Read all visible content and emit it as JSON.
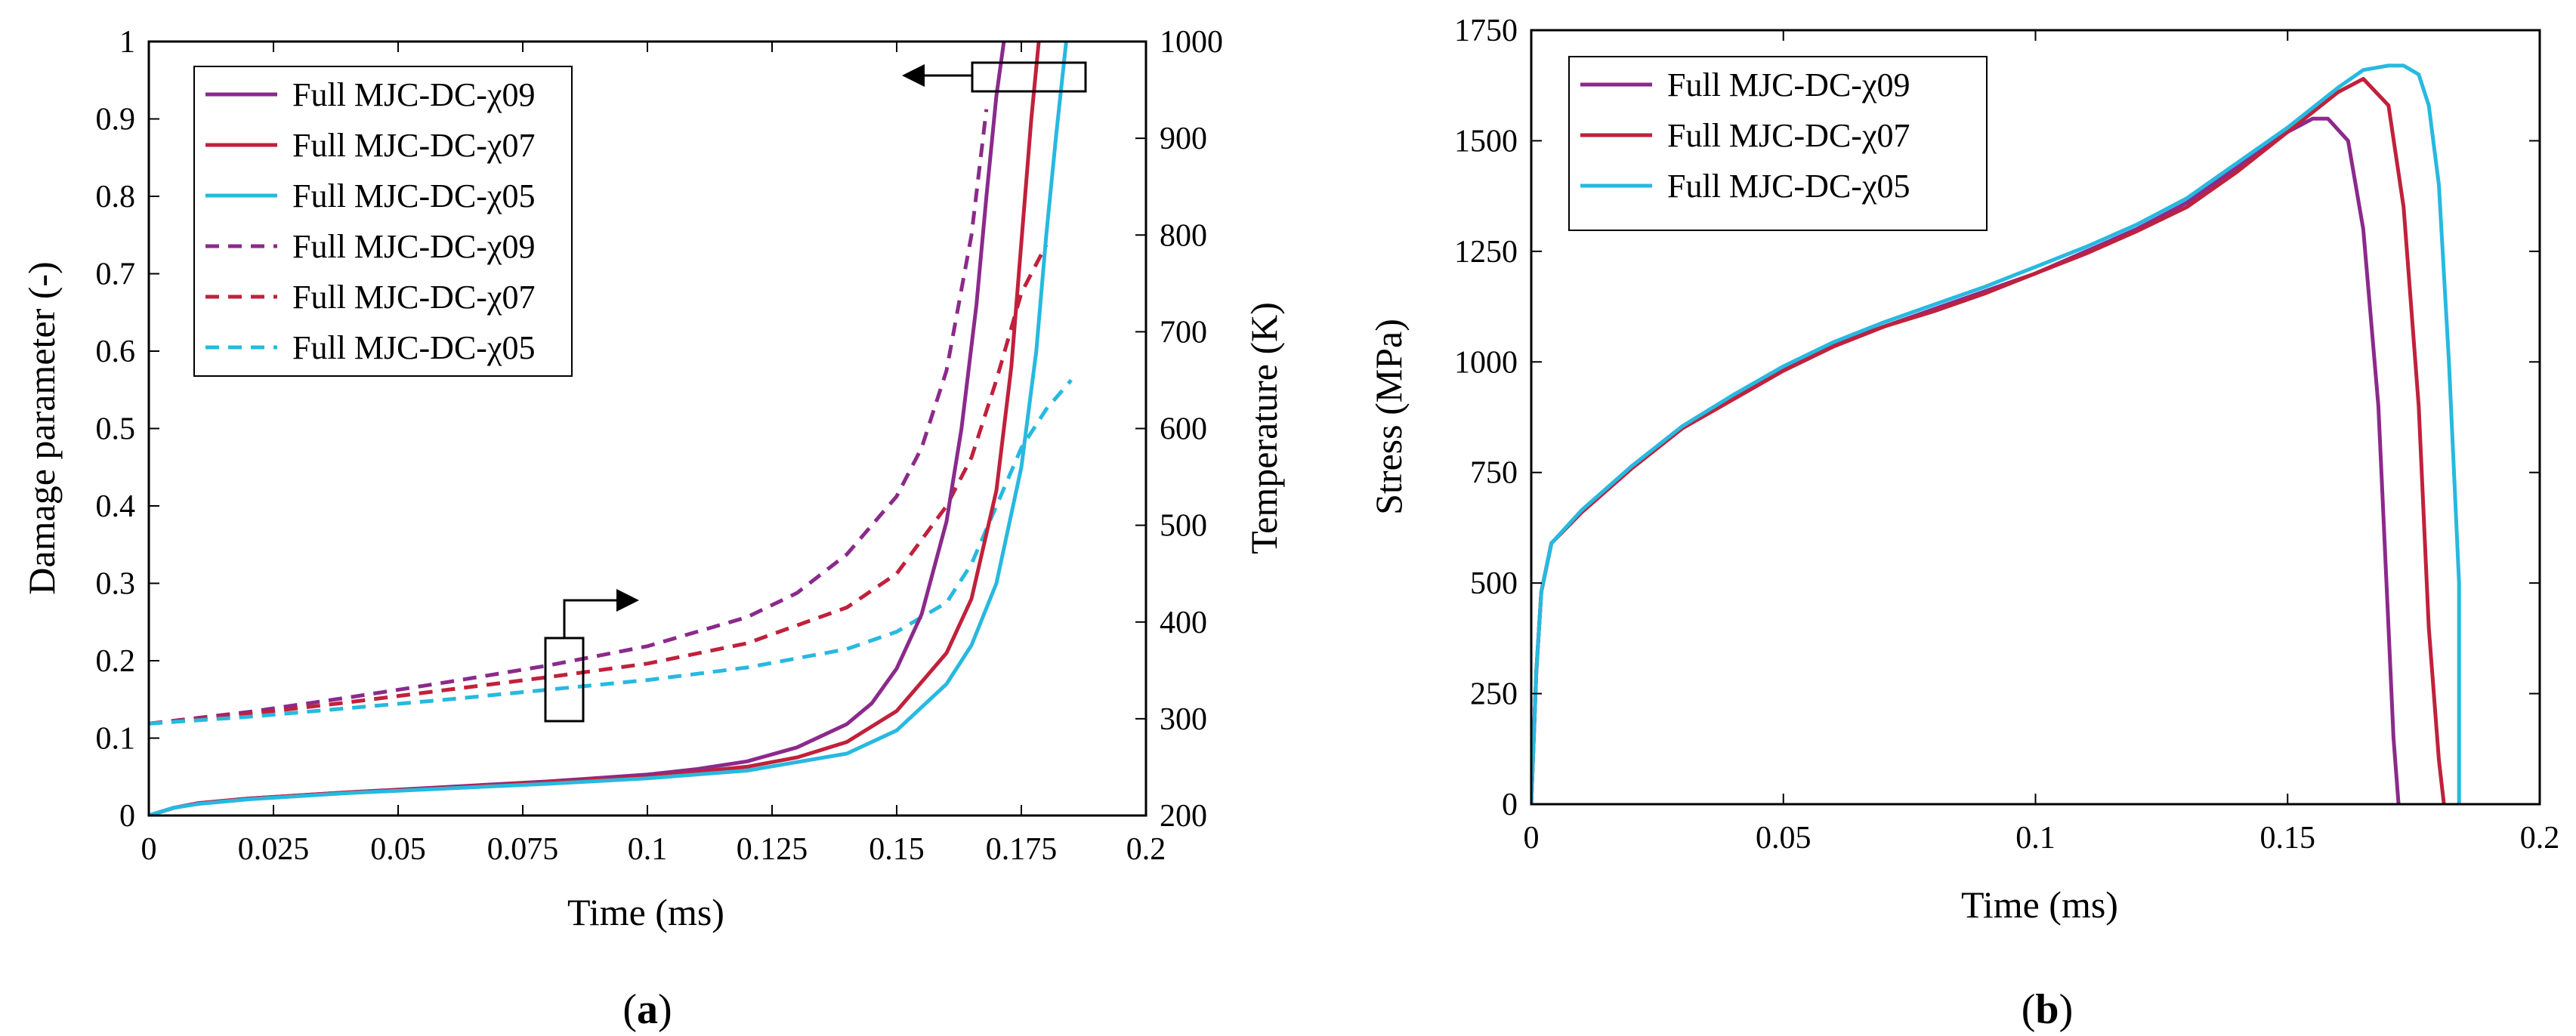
{
  "chart_data": [
    {
      "id": "a",
      "type": "line",
      "panel_label": "(a)",
      "panel_label_letter": "a",
      "xlabel": "Time (ms)",
      "ylabel": "Damage parameter (-)",
      "y2label": "Temperature (K)",
      "xlim": [
        0,
        0.2
      ],
      "ylim": [
        0,
        1
      ],
      "y2lim": [
        200,
        1000
      ],
      "xticks": [
        "0",
        "0.025",
        "0.05",
        "0.075",
        "0.1",
        "0.125",
        "0.15",
        "0.175",
        "0.2"
      ],
      "yticks": [
        "0",
        "0.1",
        "0.2",
        "0.3",
        "0.4",
        "0.5",
        "0.6",
        "0.7",
        "0.8",
        "0.9",
        "1"
      ],
      "y2ticks": [
        "200",
        "300",
        "400",
        "500",
        "600",
        "700",
        "800",
        "900",
        "1000"
      ],
      "legend_position": "top-left",
      "series": [
        {
          "name": "Full MJC-DC-χ09",
          "axis": "left",
          "style": "solid",
          "color": "#8B2A8B",
          "x": [
            0,
            0.005,
            0.01,
            0.02,
            0.04,
            0.06,
            0.08,
            0.1,
            0.11,
            0.12,
            0.13,
            0.14,
            0.145,
            0.15,
            0.155,
            0.16,
            0.163,
            0.166,
            0.168,
            0.17,
            0.1715
          ],
          "y": [
            0,
            0.01,
            0.016,
            0.022,
            0.03,
            0.037,
            0.044,
            0.053,
            0.06,
            0.07,
            0.088,
            0.118,
            0.145,
            0.19,
            0.26,
            0.38,
            0.5,
            0.66,
            0.8,
            0.93,
            1.0
          ]
        },
        {
          "name": "Full MJC-DC-χ07",
          "axis": "left",
          "style": "solid",
          "color": "#C0213B",
          "x": [
            0,
            0.005,
            0.01,
            0.02,
            0.04,
            0.06,
            0.08,
            0.1,
            0.12,
            0.13,
            0.14,
            0.15,
            0.16,
            0.165,
            0.17,
            0.173,
            0.175,
            0.177,
            0.1785
          ],
          "y": [
            0,
            0.01,
            0.016,
            0.022,
            0.03,
            0.036,
            0.043,
            0.05,
            0.063,
            0.075,
            0.095,
            0.135,
            0.21,
            0.28,
            0.42,
            0.58,
            0.74,
            0.9,
            1.0
          ]
        },
        {
          "name": "Full MJC-DC-χ05",
          "axis": "left",
          "style": "solid",
          "color": "#27B9E0",
          "x": [
            0,
            0.005,
            0.01,
            0.02,
            0.04,
            0.06,
            0.08,
            0.1,
            0.12,
            0.14,
            0.15,
            0.16,
            0.165,
            0.17,
            0.175,
            0.178,
            0.18,
            0.182,
            0.184
          ],
          "y": [
            0,
            0.01,
            0.015,
            0.021,
            0.029,
            0.035,
            0.041,
            0.048,
            0.058,
            0.08,
            0.11,
            0.17,
            0.22,
            0.3,
            0.45,
            0.6,
            0.75,
            0.88,
            1.0
          ]
        },
        {
          "name": "Full MJC-DC-χ09",
          "axis": "right",
          "style": "dashed",
          "color": "#8B2A8B",
          "x": [
            0,
            0.02,
            0.04,
            0.06,
            0.08,
            0.1,
            0.12,
            0.13,
            0.14,
            0.15,
            0.155,
            0.16,
            0.165,
            0.168
          ],
          "y": [
            295,
            307,
            322,
            338,
            355,
            375,
            405,
            430,
            470,
            530,
            580,
            660,
            800,
            930
          ]
        },
        {
          "name": "Full MJC-DC-χ07",
          "axis": "right",
          "style": "dashed",
          "color": "#C0213B",
          "x": [
            0,
            0.02,
            0.04,
            0.06,
            0.08,
            0.1,
            0.12,
            0.14,
            0.15,
            0.16,
            0.165,
            0.17,
            0.175,
            0.18
          ],
          "y": [
            295,
            305,
            317,
            330,
            343,
            357,
            378,
            415,
            450,
            520,
            570,
            650,
            740,
            790
          ]
        },
        {
          "name": "Full MJC-DC-χ05",
          "axis": "right",
          "style": "dashed",
          "color": "#27B9E0",
          "x": [
            0,
            0.02,
            0.04,
            0.06,
            0.08,
            0.1,
            0.12,
            0.14,
            0.15,
            0.16,
            0.165,
            0.17,
            0.175,
            0.18,
            0.185
          ],
          "y": [
            295,
            302,
            311,
            320,
            330,
            340,
            353,
            372,
            390,
            420,
            460,
            520,
            580,
            620,
            650
          ]
        }
      ]
    },
    {
      "id": "b",
      "type": "line",
      "panel_label": "(b)",
      "panel_label_letter": "b",
      "xlabel": "Time (ms)",
      "ylabel": "Stress (MPa)",
      "xlim": [
        0,
        0.2
      ],
      "ylim": [
        0,
        1750
      ],
      "xticks": [
        "0",
        "0.05",
        "0.1",
        "0.15",
        "0.2"
      ],
      "yticks": [
        "0",
        "250",
        "500",
        "750",
        "1000",
        "1250",
        "1500",
        "1750"
      ],
      "legend_position": "top-left",
      "series": [
        {
          "name": "Full MJC-DC-χ09",
          "style": "solid",
          "color": "#8B2A8B",
          "x": [
            0,
            0.001,
            0.002,
            0.004,
            0.01,
            0.02,
            0.03,
            0.04,
            0.05,
            0.06,
            0.07,
            0.08,
            0.09,
            0.1,
            0.11,
            0.12,
            0.13,
            0.14,
            0.15,
            0.155,
            0.158,
            0.162,
            0.165,
            0.168,
            0.17,
            0.171,
            0.172
          ],
          "y": [
            0,
            300,
            480,
            590,
            660,
            760,
            850,
            920,
            985,
            1040,
            1080,
            1120,
            1160,
            1200,
            1250,
            1300,
            1360,
            1440,
            1520,
            1550,
            1550,
            1500,
            1300,
            900,
            400,
            150,
            0
          ]
        },
        {
          "name": "Full MJC-DC-χ07",
          "style": "solid",
          "color": "#C0213B",
          "x": [
            0,
            0.001,
            0.002,
            0.004,
            0.01,
            0.02,
            0.03,
            0.04,
            0.05,
            0.06,
            0.07,
            0.08,
            0.09,
            0.1,
            0.11,
            0.12,
            0.13,
            0.14,
            0.15,
            0.16,
            0.165,
            0.17,
            0.173,
            0.176,
            0.178,
            0.18,
            0.181
          ],
          "y": [
            0,
            300,
            480,
            590,
            660,
            760,
            850,
            915,
            980,
            1035,
            1080,
            1115,
            1155,
            1200,
            1245,
            1295,
            1350,
            1430,
            1520,
            1610,
            1640,
            1580,
            1350,
            900,
            400,
            100,
            0
          ]
        },
        {
          "name": "Full MJC-DC-χ05",
          "style": "solid",
          "color": "#27B9E0",
          "x": [
            0,
            0.001,
            0.002,
            0.004,
            0.01,
            0.02,
            0.03,
            0.04,
            0.05,
            0.06,
            0.07,
            0.08,
            0.09,
            0.1,
            0.11,
            0.12,
            0.13,
            0.14,
            0.15,
            0.16,
            0.165,
            0.17,
            0.173,
            0.176,
            0.178,
            0.18,
            0.182,
            0.184,
            0.184
          ],
          "y": [
            0,
            300,
            480,
            590,
            665,
            765,
            855,
            925,
            990,
            1045,
            1090,
            1130,
            1170,
            1215,
            1260,
            1310,
            1370,
            1450,
            1530,
            1620,
            1660,
            1670,
            1670,
            1650,
            1580,
            1400,
            1000,
            500,
            0
          ]
        }
      ]
    }
  ],
  "colors": {
    "purple": "#8B2A8B",
    "red": "#C0213B",
    "cyan": "#27B9E0",
    "axis": "#000000"
  }
}
